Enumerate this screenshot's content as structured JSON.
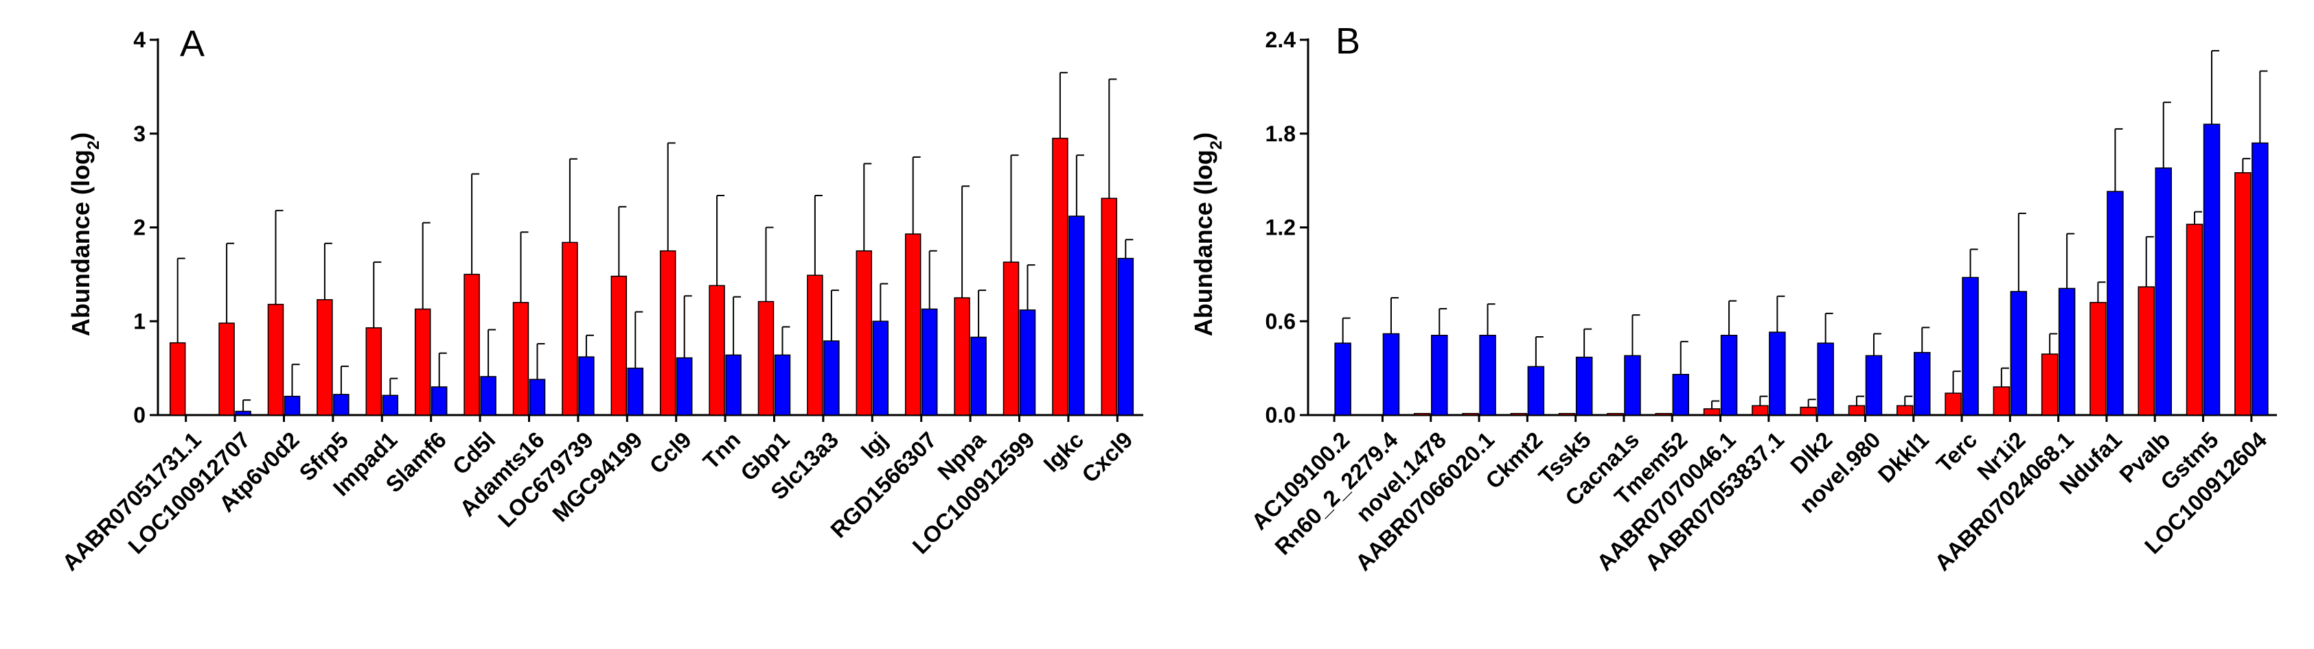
{
  "chart_data": [
    {
      "type": "bar",
      "panel": "A",
      "ylabel": "Abundance (log",
      "ylabel_sub": "2",
      "ylabel_close": ")",
      "ylim": [
        0,
        4
      ],
      "yticks": [
        0,
        1,
        2,
        3,
        4
      ],
      "ytick_labels": [
        "0",
        "1",
        "2",
        "3",
        "4"
      ],
      "categories": [
        "AABR07051731.1",
        "LOC100912707",
        "Atp6v0d2",
        "Sfrp5",
        "Impad1",
        "Slamf6",
        "Cd5l",
        "Adamts16",
        "LOC679739",
        "MGC94199",
        "Ccl9",
        "Tnn",
        "Gbp1",
        "Slc13a3",
        "Igj",
        "RGD1566307",
        "Nppa",
        "LOC100912599",
        "Igkc",
        "Cxcl9"
      ],
      "series": [
        {
          "name": "red",
          "color": "#ff0000",
          "values": [
            0.77,
            0.98,
            1.18,
            1.23,
            0.93,
            1.13,
            1.5,
            1.2,
            1.84,
            1.48,
            1.75,
            1.38,
            1.21,
            1.49,
            1.75,
            1.93,
            1.25,
            1.63,
            2.95,
            2.31
          ],
          "errors": [
            0.9,
            0.85,
            1.0,
            0.6,
            0.7,
            0.92,
            1.07,
            0.75,
            0.89,
            0.74,
            1.15,
            0.96,
            0.79,
            0.85,
            0.93,
            0.82,
            1.19,
            1.14,
            0.7,
            1.27
          ]
        },
        {
          "name": "blue",
          "color": "#0000ff",
          "values": [
            0.0,
            0.04,
            0.2,
            0.22,
            0.21,
            0.3,
            0.41,
            0.38,
            0.62,
            0.5,
            0.61,
            0.64,
            0.64,
            0.79,
            1.0,
            1.13,
            0.83,
            1.12,
            2.12,
            1.67
          ],
          "errors": [
            0.0,
            0.12,
            0.34,
            0.3,
            0.18,
            0.36,
            0.5,
            0.38,
            0.23,
            0.6,
            0.66,
            0.62,
            0.3,
            0.54,
            0.4,
            0.62,
            0.5,
            0.48,
            0.65,
            0.2
          ]
        }
      ]
    },
    {
      "type": "bar",
      "panel": "B",
      "ylabel": "Abundance (log",
      "ylabel_sub": "2",
      "ylabel_close": ")",
      "ylim": [
        0,
        2.4
      ],
      "yticks": [
        0,
        0.6,
        1.2,
        1.8,
        2.4
      ],
      "ytick_labels": [
        "0.0",
        "0.6",
        "1.2",
        "1.8",
        "2.4"
      ],
      "categories": [
        "AC109100.2",
        "Rn60_2_2279.4",
        "novel.1478",
        "AABR07066020.1",
        "Ckmt2",
        "Tssk5",
        "Cacna1s",
        "Tmem52",
        "AABR07070046.1",
        "AABR07053837.1",
        "Dlk2",
        "novel.980",
        "Dkkl1",
        "Terc",
        "Nr1i2",
        "AABR07024068.1",
        "Ndufa1",
        "Pvalb",
        "Gstm5",
        "LOC100912604"
      ],
      "series": [
        {
          "name": "red",
          "color": "#ff0000",
          "values": [
            0.0,
            0.0,
            0.01,
            0.01,
            0.01,
            0.01,
            0.01,
            0.01,
            0.04,
            0.06,
            0.05,
            0.06,
            0.06,
            0.14,
            0.18,
            0.39,
            0.72,
            0.82,
            1.22,
            1.55
          ],
          "errors": [
            0.0,
            0.0,
            0.0,
            0.0,
            0.0,
            0.0,
            0.0,
            0.0,
            0.05,
            0.06,
            0.05,
            0.06,
            0.06,
            0.14,
            0.12,
            0.13,
            0.13,
            0.32,
            0.08,
            0.09
          ]
        },
        {
          "name": "blue",
          "color": "#0000ff",
          "values": [
            0.46,
            0.52,
            0.51,
            0.51,
            0.31,
            0.37,
            0.38,
            0.26,
            0.51,
            0.53,
            0.46,
            0.38,
            0.4,
            0.88,
            0.79,
            0.81,
            1.43,
            1.58,
            1.86,
            1.74
          ],
          "errors": [
            0.16,
            0.23,
            0.17,
            0.2,
            0.19,
            0.18,
            0.26,
            0.21,
            0.22,
            0.23,
            0.19,
            0.14,
            0.16,
            0.18,
            0.5,
            0.35,
            0.4,
            0.42,
            0.47,
            0.46
          ]
        }
      ]
    }
  ]
}
